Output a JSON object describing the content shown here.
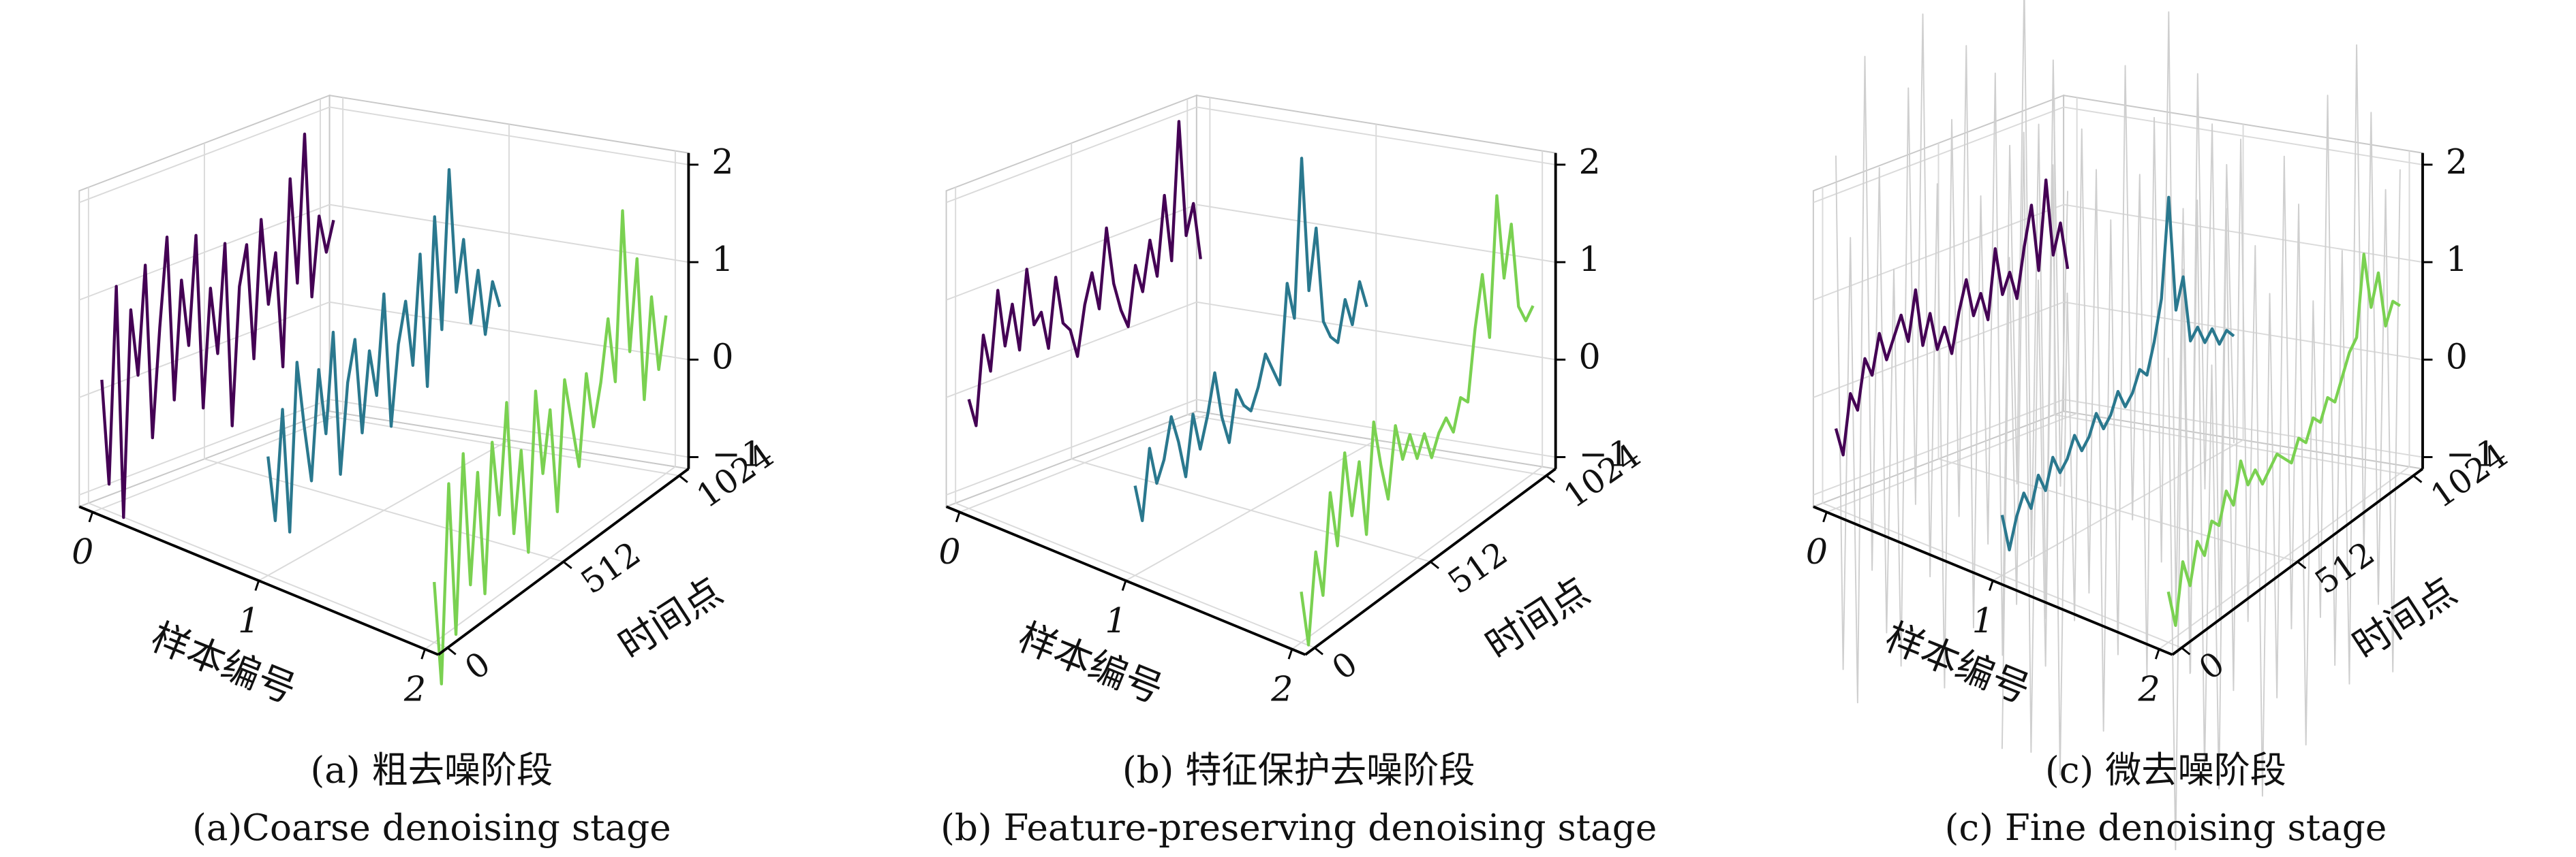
{
  "chart_data": [
    {
      "type": "line3d",
      "title": "(a) 粗去噪阶段",
      "subtitle": "(a)Coarse denoising stage",
      "slabel": "样本编号",
      "slim": [
        0,
        2
      ],
      "sticks": [
        0,
        1,
        2
      ],
      "xlabel": "时间点",
      "xlim": [
        0,
        1024
      ],
      "xticks": [
        0,
        512,
        1024
      ],
      "zlim": [
        -1,
        2
      ],
      "zticks": [
        {
          "value": -1,
          "label": "−1"
        },
        0,
        1,
        2
      ],
      "grid": true,
      "x": [
        0,
        32,
        64,
        96,
        128,
        160,
        192,
        224,
        256,
        288,
        320,
        352,
        384,
        416,
        448,
        480,
        512,
        544,
        576,
        608,
        640,
        672,
        704,
        736,
        768,
        800,
        832,
        864,
        896,
        928,
        960,
        992,
        1024
      ],
      "series": [
        {
          "sample": 0,
          "color": "#440154",
          "values": [
            0.2,
            -0.9,
            1.1,
            -1.3,
            0.8,
            0.1,
            1.2,
            -0.6,
            0.5,
            1.4,
            -0.3,
            0.9,
            0.2,
            1.3,
            -0.5,
            0.7,
            0.0,
            1.1,
            -0.8,
            0.6,
            1.0,
            -0.2,
            1.2,
            0.3,
            0.8,
            -0.4,
            1.5,
            0.4,
            1.9,
            0.2,
            1.0,
            0.6,
            0.9
          ]
        },
        {
          "sample": 1,
          "color": "#2a788e",
          "values": [
            0.1,
            -0.6,
            0.5,
            -0.8,
            0.9,
            0.2,
            -0.4,
            0.7,
            0.0,
            1.0,
            -0.5,
            0.4,
            0.8,
            -0.2,
            0.6,
            0.1,
            1.1,
            -0.3,
            0.5,
            0.9,
            0.2,
            1.3,
            -0.1,
            1.6,
            0.4,
            2.0,
            0.7,
            1.2,
            0.3,
            0.8,
            0.1,
            0.6,
            0.3
          ]
        },
        {
          "sample": 2,
          "color": "#7ad151",
          "values": [
            -0.5,
            -1.6,
            0.4,
            -1.2,
            0.6,
            -0.8,
            0.3,
            -1.0,
            0.5,
            -0.3,
            0.8,
            -0.6,
            0.2,
            -0.9,
            0.7,
            -0.2,
            0.4,
            -0.7,
            0.6,
            0.1,
            -0.4,
            0.5,
            -0.1,
            0.3,
            0.9,
            0.2,
            1.9,
            0.4,
            1.3,
            -0.2,
            0.8,
            0.0,
            0.5
          ]
        }
      ]
    },
    {
      "type": "line3d",
      "title": "(b) 特征保护去噪阶段",
      "subtitle": "(b) Feature-preserving denoising stage",
      "slabel": "样本编号",
      "slim": [
        0,
        2
      ],
      "sticks": [
        0,
        1,
        2
      ],
      "xlabel": "时间点",
      "xlim": [
        0,
        1024
      ],
      "xticks": [
        0,
        512,
        1024
      ],
      "zlim": [
        -1,
        2
      ],
      "zticks": [
        {
          "value": -1,
          "label": "−1"
        },
        0,
        1,
        2
      ],
      "grid": true,
      "x": [
        0,
        32,
        64,
        96,
        128,
        160,
        192,
        224,
        256,
        288,
        320,
        352,
        384,
        416,
        448,
        480,
        512,
        544,
        576,
        608,
        640,
        672,
        704,
        736,
        768,
        800,
        832,
        864,
        896,
        928,
        960,
        992,
        1024
      ],
      "series": [
        {
          "sample": 0,
          "color": "#440154",
          "values": [
            0.0,
            -0.3,
            0.6,
            0.2,
            1.0,
            0.4,
            0.8,
            0.3,
            1.1,
            0.5,
            0.6,
            0.2,
            0.9,
            0.4,
            0.3,
            0.0,
            0.5,
            0.8,
            0.4,
            1.2,
            0.6,
            0.3,
            0.1,
            0.7,
            0.4,
            0.9,
            0.5,
            1.3,
            0.6,
            2.0,
            0.8,
            1.1,
            0.5
          ]
        },
        {
          "sample": 1,
          "color": "#2a788e",
          "values": [
            -0.2,
            -0.6,
            0.1,
            -0.3,
            -0.1,
            0.3,
            0.0,
            -0.4,
            0.2,
            -0.2,
            0.1,
            0.5,
            0.0,
            -0.3,
            0.2,
            0.0,
            -0.1,
            0.1,
            0.4,
            0.2,
            0.0,
            1.0,
            0.6,
            2.2,
            0.8,
            1.4,
            0.4,
            0.2,
            0.1,
            0.5,
            0.2,
            0.6,
            0.3
          ]
        },
        {
          "sample": 2,
          "color": "#7ad151",
          "values": [
            -0.6,
            -1.2,
            -0.3,
            -0.8,
            0.2,
            -0.4,
            0.5,
            -0.2,
            0.3,
            -0.5,
            0.6,
            0.1,
            -0.3,
            0.4,
            0.0,
            0.2,
            -0.1,
            0.1,
            -0.2,
            0.0,
            0.1,
            -0.1,
            0.2,
            0.1,
            0.8,
            1.3,
            0.6,
            2.0,
            1.1,
            1.6,
            0.7,
            0.5,
            0.6
          ]
        }
      ]
    },
    {
      "type": "line3d",
      "title": "(c) 微去噪阶段",
      "subtitle": "(c) Fine denoising stage",
      "slabel": "样本编号",
      "slim": [
        0,
        2
      ],
      "sticks": [
        0,
        1,
        2
      ],
      "xlabel": "时间点",
      "xlim": [
        0,
        1024
      ],
      "xticks": [
        0,
        512,
        1024
      ],
      "zlim": [
        -1,
        2
      ],
      "zticks": [
        {
          "value": -1,
          "label": "−1"
        },
        0,
        1,
        2
      ],
      "grid": true,
      "x": [
        0,
        32,
        64,
        96,
        128,
        160,
        192,
        224,
        256,
        288,
        320,
        352,
        384,
        416,
        448,
        480,
        512,
        544,
        576,
        608,
        640,
        672,
        704,
        736,
        768,
        800,
        832,
        864,
        896,
        928,
        960,
        992,
        1024
      ],
      "series": [
        {
          "sample": 0,
          "color": "#cfcfcf",
          "values": [
            2.5,
            -2.8,
            1.6,
            -3.2,
            3.4,
            -1.9,
            2.2,
            -2.6,
            1.1,
            -3.0,
            2.9,
            -1.4,
            3.6,
            -2.2,
            1.8,
            -3.4,
            2.4,
            -1.7,
            3.1,
            -2.9,
            1.5,
            -2.1,
            2.7,
            -3.3,
            1.9,
            -1.6,
            3.5,
            -2.4,
            2.0,
            -3.1,
            2.6,
            -1.8,
            1.2
          ]
        },
        {
          "sample": 1,
          "color": "#cfcfcf",
          "values": [
            -2.9,
            2.1,
            -1.5,
            3.3,
            -3.1,
            1.7,
            -2.3,
            2.8,
            -3.5,
            1.4,
            -2.0,
            3.0,
            -1.8,
            2.5,
            -3.3,
            1.9,
            -2.6,
            3.4,
            -1.3,
            2.2,
            -3.0,
            2.7,
            -1.9,
            3.7,
            -2.5,
            1.6,
            -3.2,
            2.9,
            -1.4,
            2.3,
            -2.8,
            1.8,
            -1.1
          ]
        },
        {
          "sample": 2,
          "color": "#cfcfcf",
          "values": [
            1.8,
            -3.3,
            2.6,
            -1.6,
            3.2,
            -2.7,
            1.4,
            -3.0,
            2.9,
            -2.1,
            3.5,
            -1.5,
            2.3,
            -3.4,
            1.7,
            -2.5,
            3.0,
            -1.9,
            2.4,
            -3.2,
            1.3,
            -2.0,
            3.3,
            -2.6,
            1.6,
            -2.9,
            3.6,
            -1.7,
            2.8,
            -2.3,
            1.9,
            -3.1,
            2.0
          ]
        },
        {
          "sample": 0,
          "color": "#440154",
          "values": [
            -0.3,
            -0.6,
            0.0,
            -0.2,
            0.3,
            0.1,
            0.5,
            0.2,
            0.4,
            0.6,
            0.3,
            0.8,
            0.2,
            0.5,
            0.1,
            0.3,
            0.0,
            0.4,
            0.7,
            0.3,
            0.5,
            0.2,
            0.9,
            0.4,
            0.6,
            0.3,
            0.8,
            1.2,
            0.5,
            1.4,
            0.6,
            0.9,
            0.4
          ]
        },
        {
          "sample": 1,
          "color": "#2a788e",
          "values": [
            -0.5,
            -0.9,
            -0.6,
            -0.4,
            -0.6,
            -0.3,
            -0.5,
            -0.2,
            -0.4,
            -0.3,
            -0.1,
            -0.3,
            -0.2,
            0.0,
            -0.2,
            -0.1,
            0.1,
            -0.1,
            0.0,
            0.2,
            0.1,
            0.4,
            0.8,
            1.8,
            0.6,
            0.9,
            0.2,
            0.3,
            0.1,
            0.2,
            0.0,
            0.1,
            0.0
          ]
        },
        {
          "sample": 2,
          "color": "#7ad151",
          "values": [
            -0.6,
            -1.0,
            -0.4,
            -0.7,
            -0.3,
            -0.5,
            -0.2,
            -0.3,
            0.0,
            -0.2,
            0.2,
            -0.1,
            0.0,
            -0.2,
            -0.1,
            0.0,
            -0.1,
            -0.2,
            0.0,
            -0.1,
            0.1,
            0.0,
            0.2,
            0.1,
            0.3,
            0.5,
            0.6,
            1.4,
            0.8,
            1.1,
            0.5,
            0.7,
            0.6
          ]
        }
      ]
    }
  ]
}
